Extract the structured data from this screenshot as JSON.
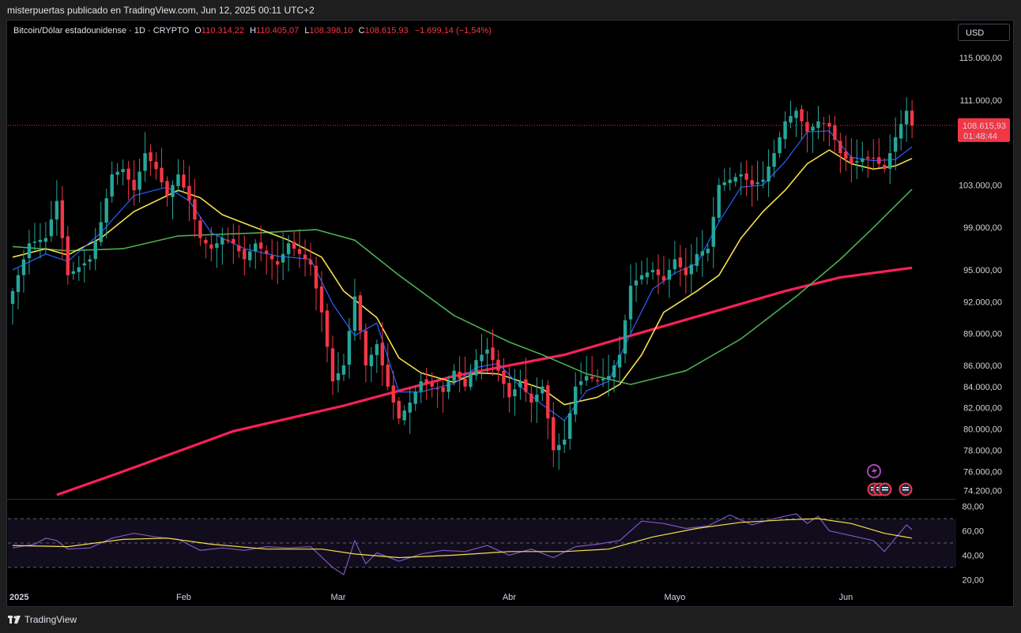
{
  "caption": "misterpuertas publicado en TradingView.com, Jun 12, 2025 00:11 UTC+2",
  "header": {
    "symbol": "Bitcoin/Dólar estadounidense · 1D · CRYPTO",
    "o_label": "O",
    "o_value": "110.314,22",
    "h_label": "H",
    "h_value": "110.405,07",
    "l_label": "L",
    "l_value": "108.398,10",
    "c_label": "C",
    "c_value": "108.615,93",
    "change": "−1.699,14 (−1,54%)"
  },
  "currency_button": "USD",
  "price_label": {
    "price": "108.615,93",
    "countdown": "01:48:44"
  },
  "footer_brand": "TradingView",
  "colors": {
    "up": "#26a69a",
    "down": "#f23645",
    "ma_fast": "#2962ff",
    "ma_yellow": "#f5e04a",
    "ma_green": "#4caf50",
    "ma_red": "#ff1f5a",
    "rsi": "#7e57c2",
    "rsi_ma": "#f5e04a"
  },
  "chart_data": [
    {
      "type": "candlestick",
      "title": "Bitcoin/Dólar estadounidense · 1D · CRYPTO",
      "ylim": [
        73500,
        118500
      ],
      "y_ticks": [
        {
          "label": "115.000,00",
          "value": 115000
        },
        {
          "label": "111.000,00",
          "value": 111000
        },
        {
          "label": "103.000,00",
          "value": 103000
        },
        {
          "label": "99.000,00",
          "value": 99000
        },
        {
          "label": "95.000,00",
          "value": 95000
        },
        {
          "label": "92.000,00",
          "value": 92000
        },
        {
          "label": "89.000,00",
          "value": 89000
        },
        {
          "label": "86.000,00",
          "value": 86000
        },
        {
          "label": "84.000,00",
          "value": 84000
        },
        {
          "label": "82.000,00",
          "value": 82000
        },
        {
          "label": "80.000,00",
          "value": 80000
        },
        {
          "label": "78.000,00",
          "value": 78000
        },
        {
          "label": "76.000,00",
          "value": 76000
        },
        {
          "label": "74.200,00",
          "value": 74200
        }
      ],
      "x_ticks": [
        "2025",
        "Feb",
        "Mar",
        "Abr",
        "Mayo",
        "Jun"
      ],
      "x_tick_day_index": [
        0,
        31,
        59,
        90,
        120,
        151
      ],
      "last_price": 108615.93,
      "close_points": [
        [
          0,
          93000
        ],
        [
          3,
          97500
        ],
        [
          6,
          98000
        ],
        [
          8,
          101500
        ],
        [
          10,
          94500
        ],
        [
          14,
          96000
        ],
        [
          16,
          99500
        ],
        [
          18,
          104000
        ],
        [
          20,
          104500
        ],
        [
          22,
          102500
        ],
        [
          24,
          106000
        ],
        [
          26,
          104500
        ],
        [
          28,
          102000
        ],
        [
          30,
          104000
        ],
        [
          32,
          101500
        ],
        [
          34,
          98000
        ],
        [
          36,
          97000
        ],
        [
          38,
          98000
        ],
        [
          40,
          97500
        ],
        [
          42,
          96000
        ],
        [
          44,
          97500
        ],
        [
          46,
          96500
        ],
        [
          48,
          95500
        ],
        [
          50,
          97500
        ],
        [
          52,
          96500
        ],
        [
          54,
          95500
        ],
        [
          56,
          91000
        ],
        [
          58,
          84500
        ],
        [
          60,
          86000
        ],
        [
          62,
          92500
        ],
        [
          64,
          86000
        ],
        [
          66,
          88000
        ],
        [
          68,
          84000
        ],
        [
          70,
          81000
        ],
        [
          72,
          82500
        ],
        [
          74,
          84500
        ],
        [
          76,
          84000
        ],
        [
          78,
          83500
        ],
        [
          80,
          85500
        ],
        [
          82,
          84000
        ],
        [
          84,
          86500
        ],
        [
          86,
          87500
        ],
        [
          88,
          85500
        ],
        [
          90,
          83000
        ],
        [
          92,
          84500
        ],
        [
          94,
          82500
        ],
        [
          96,
          84000
        ],
        [
          98,
          78000
        ],
        [
          100,
          79000
        ],
        [
          102,
          84000
        ],
        [
          104,
          85000
        ],
        [
          106,
          84500
        ],
        [
          108,
          85000
        ],
        [
          110,
          87000
        ],
        [
          112,
          93500
        ],
        [
          114,
          94500
        ],
        [
          116,
          95000
        ],
        [
          118,
          94000
        ],
        [
          120,
          96000
        ],
        [
          122,
          94500
        ],
        [
          124,
          96500
        ],
        [
          126,
          97000
        ],
        [
          128,
          103000
        ],
        [
          130,
          103500
        ],
        [
          132,
          104000
        ],
        [
          134,
          103000
        ],
        [
          136,
          103500
        ],
        [
          138,
          106000
        ],
        [
          140,
          109000
        ],
        [
          142,
          110000
        ],
        [
          144,
          108000
        ],
        [
          146,
          109000
        ],
        [
          148,
          108500
        ],
        [
          150,
          106000
        ],
        [
          152,
          105000
        ],
        [
          154,
          105500
        ],
        [
          156,
          105500
        ],
        [
          158,
          104500
        ],
        [
          160,
          107500
        ],
        [
          162,
          110000
        ],
        [
          163,
          108615.93
        ]
      ],
      "series": [
        {
          "name": "",
          "color_key": "ma_red",
          "points": [
            [
              8,
              73800
            ],
            [
              20,
              76000
            ],
            [
              40,
              79800
            ],
            [
              60,
              82200
            ],
            [
              80,
              85000
            ],
            [
              100,
              87000
            ],
            [
              120,
              90000
            ],
            [
              140,
              93000
            ],
            [
              150,
              94300
            ],
            [
              163,
              95200
            ]
          ]
        },
        {
          "name": "",
          "color_key": "ma_green",
          "points": [
            [
              0,
              97200
            ],
            [
              10,
              96800
            ],
            [
              20,
              97000
            ],
            [
              30,
              98200
            ],
            [
              45,
              98500
            ],
            [
              55,
              98800
            ],
            [
              62,
              97800
            ],
            [
              70,
              94500
            ],
            [
              80,
              90700
            ],
            [
              90,
              88200
            ],
            [
              96,
              87000
            ],
            [
              104,
              85200
            ],
            [
              112,
              84200
            ],
            [
              122,
              85500
            ],
            [
              132,
              88500
            ],
            [
              142,
              92500
            ],
            [
              150,
              96000
            ],
            [
              156,
              99000
            ],
            [
              163,
              102600
            ]
          ]
        },
        {
          "name": "",
          "color_key": "ma_yellow",
          "points": [
            [
              0,
              96200
            ],
            [
              6,
              97000
            ],
            [
              10,
              96400
            ],
            [
              16,
              98000
            ],
            [
              22,
              100500
            ],
            [
              30,
              102500
            ],
            [
              34,
              101800
            ],
            [
              38,
              100200
            ],
            [
              44,
              99000
            ],
            [
              50,
              97800
            ],
            [
              56,
              96200
            ],
            [
              60,
              93000
            ],
            [
              66,
              90500
            ],
            [
              70,
              86700
            ],
            [
              74,
              85300
            ],
            [
              80,
              84400
            ],
            [
              84,
              85300
            ],
            [
              88,
              85200
            ],
            [
              92,
              84500
            ],
            [
              96,
              83800
            ],
            [
              100,
              82300
            ],
            [
              106,
              83000
            ],
            [
              110,
              84200
            ],
            [
              114,
              87000
            ],
            [
              118,
              91000
            ],
            [
              124,
              93000
            ],
            [
              128,
              94500
            ],
            [
              132,
              98000
            ],
            [
              136,
              100500
            ],
            [
              140,
              102500
            ],
            [
              144,
              105000
            ],
            [
              148,
              106300
            ],
            [
              152,
              105000
            ],
            [
              156,
              104500
            ],
            [
              160,
              104800
            ],
            [
              163,
              105500
            ]
          ]
        },
        {
          "name": "",
          "color_key": "ma_fast",
          "points": [
            [
              0,
              95000
            ],
            [
              6,
              96500
            ],
            [
              10,
              95800
            ],
            [
              16,
              98500
            ],
            [
              22,
              102000
            ],
            [
              28,
              102800
            ],
            [
              32,
              101500
            ],
            [
              36,
              98500
            ],
            [
              42,
              97000
            ],
            [
              48,
              96300
            ],
            [
              54,
              96000
            ],
            [
              58,
              91800
            ],
            [
              62,
              88800
            ],
            [
              66,
              90000
            ],
            [
              70,
              83500
            ],
            [
              74,
              83500
            ],
            [
              80,
              84300
            ],
            [
              84,
              85800
            ],
            [
              88,
              86200
            ],
            [
              92,
              84000
            ],
            [
              96,
              82300
            ],
            [
              100,
              80800
            ],
            [
              104,
              83600
            ],
            [
              108,
              84500
            ],
            [
              112,
              89000
            ],
            [
              116,
              93200
            ],
            [
              120,
              94700
            ],
            [
              124,
              95600
            ],
            [
              128,
              99500
            ],
            [
              132,
              102800
            ],
            [
              136,
              103000
            ],
            [
              140,
              105200
            ],
            [
              144,
              108000
            ],
            [
              148,
              108100
            ],
            [
              152,
              105600
            ],
            [
              156,
              105300
            ],
            [
              160,
              105400
            ],
            [
              163,
              106600
            ]
          ]
        }
      ]
    },
    {
      "type": "line",
      "title": "",
      "ylim": [
        15,
        85
      ],
      "y_ticks": [
        {
          "label": "80,00",
          "value": 80
        },
        {
          "label": "60,00",
          "value": 60
        },
        {
          "label": "40,00",
          "value": 40
        },
        {
          "label": "20,00",
          "value": 20
        }
      ],
      "bands": [
        30,
        50,
        70
      ],
      "series": [
        {
          "name": "",
          "color_key": "rsi",
          "points": [
            [
              0,
              46
            ],
            [
              4,
              49
            ],
            [
              6,
              54
            ],
            [
              8,
              52
            ],
            [
              10,
              45
            ],
            [
              14,
              46
            ],
            [
              18,
              54
            ],
            [
              22,
              58
            ],
            [
              26,
              55
            ],
            [
              30,
              53
            ],
            [
              34,
              44
            ],
            [
              38,
              46
            ],
            [
              42,
              44
            ],
            [
              46,
              47
            ],
            [
              50,
              46
            ],
            [
              54,
              47
            ],
            [
              58,
              30
            ],
            [
              60,
              24
            ],
            [
              62,
              52
            ],
            [
              64,
              33
            ],
            [
              66,
              42
            ],
            [
              70,
              35
            ],
            [
              74,
              41
            ],
            [
              78,
              44
            ],
            [
              82,
              43
            ],
            [
              86,
              48
            ],
            [
              90,
              40
            ],
            [
              94,
              45
            ],
            [
              98,
              38
            ],
            [
              102,
              47
            ],
            [
              106,
              49
            ],
            [
              110,
              52
            ],
            [
              114,
              68
            ],
            [
              118,
              66
            ],
            [
              122,
              62
            ],
            [
              126,
              64
            ],
            [
              130,
              73
            ],
            [
              134,
              65
            ],
            [
              138,
              70
            ],
            [
              142,
              74
            ],
            [
              144,
              66
            ],
            [
              146,
              72
            ],
            [
              148,
              60
            ],
            [
              152,
              56
            ],
            [
              156,
              52
            ],
            [
              158,
              43
            ],
            [
              160,
              54
            ],
            [
              162,
              65
            ],
            [
              163,
              61
            ]
          ]
        },
        {
          "name": "",
          "color_key": "rsi_ma",
          "points": [
            [
              0,
              48
            ],
            [
              10,
              47
            ],
            [
              20,
              53
            ],
            [
              28,
              54
            ],
            [
              36,
              49
            ],
            [
              46,
              45
            ],
            [
              56,
              45
            ],
            [
              62,
              41
            ],
            [
              70,
              38
            ],
            [
              80,
              40
            ],
            [
              90,
              43
            ],
            [
              100,
              43
            ],
            [
              108,
              45
            ],
            [
              116,
              55
            ],
            [
              124,
              62
            ],
            [
              132,
              67
            ],
            [
              140,
              69
            ],
            [
              146,
              70
            ],
            [
              152,
              66
            ],
            [
              158,
              58
            ],
            [
              163,
              54
            ]
          ]
        }
      ]
    }
  ]
}
